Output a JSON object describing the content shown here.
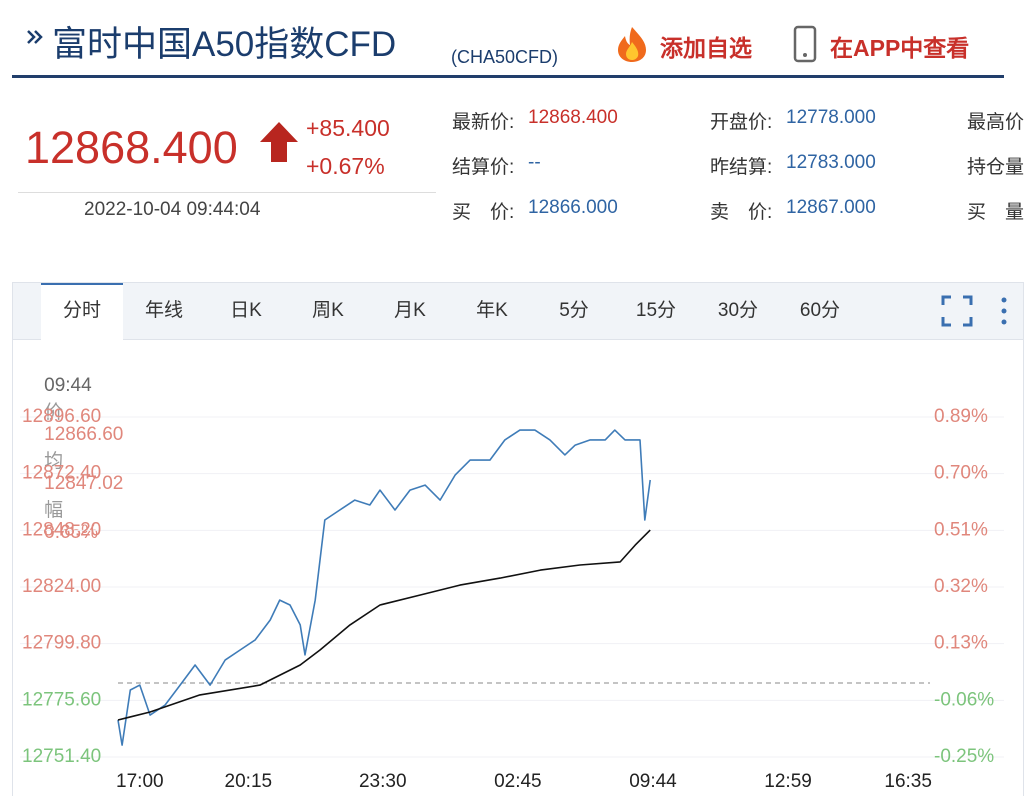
{
  "header": {
    "title": "富时中国A50指数CFD",
    "code": "(CHA50CFD)",
    "actions": [
      "添加自选",
      "在APP中查看"
    ]
  },
  "quote": {
    "price": "12868.400",
    "change": "+85.400",
    "change_pct": "+0.67%",
    "time": "2022-10-04 09:44:04"
  },
  "fields": [
    [
      {
        "label": "最新价:",
        "value": "12868.400"
      },
      {
        "label": "开盘价:",
        "value": "12778.000"
      },
      {
        "label": "最高价"
      }
    ],
    [
      {
        "label": "结算价:",
        "value": "--"
      },
      {
        "label": "昨结算:",
        "value": "12783.000"
      },
      {
        "label": "持仓量"
      }
    ],
    [
      {
        "label": "买　价:",
        "value": "12866.000"
      },
      {
        "label": "卖　价:",
        "value": "12867.000"
      },
      {
        "label": "买　量"
      }
    ]
  ],
  "tabs": [
    "分时",
    "年线",
    "日K",
    "周K",
    "月K",
    "年K",
    "5分",
    "15分",
    "30分",
    "60分"
  ],
  "chart_info": {
    "time": "09:44",
    "price_label": "价",
    "price": "12866.60",
    "avg_label": "均",
    "avg": "12847.02",
    "amp_label": "幅",
    "amp": "0.65%"
  },
  "chart_data": {
    "type": "line",
    "series": [
      {
        "color": "#3f7cb8",
        "x": [
          0,
          6,
          18,
          32,
          47,
          69,
          91,
          113,
          135,
          157,
          179,
          201,
          223,
          237,
          252,
          267,
          274,
          289,
          303,
          325,
          347,
          369,
          384,
          406,
          428,
          450,
          472,
          494,
          516,
          545,
          567,
          589,
          611,
          633,
          655,
          670,
          692,
          714,
          728,
          743,
          765,
          772,
          780
        ],
        "values": [
          12767.2,
          12756.5,
          12780.0,
          12782.1,
          12769.3,
          12773.6,
          12782.1,
          12790.7,
          12782.1,
          12792.8,
          12797.1,
          12801.4,
          12809.9,
          12818.4,
          12816.3,
          12807.8,
          12795.0,
          12818.4,
          12852.6,
          12856.9,
          12861.1,
          12859.0,
          12865.4,
          12856.9,
          12865.4,
          12867.5,
          12861.1,
          12871.8,
          12878.2,
          12878.2,
          12886.8,
          12891.0,
          12891.0,
          12886.8,
          12880.4,
          12884.6,
          12886.8,
          12886.8,
          12891.0,
          12886.8,
          12886.8,
          12852.6,
          12869.7
        ]
      },
      {
        "color": "#111111",
        "x": [
          0,
          47,
          120,
          208,
          267,
          296,
          340,
          384,
          443,
          501,
          560,
          619,
          677,
          736,
          758,
          780
        ],
        "values": [
          12767.2,
          12770.6,
          12777.9,
          12782.1,
          12790.7,
          12797.1,
          12807.8,
          12816.3,
          12820.6,
          12824.8,
          12827.8,
          12831.2,
          12833.4,
          12834.7,
          12841.9,
          12848.3
        ]
      }
    ],
    "baseline": 12783,
    "xlim": [
      0,
      1190
    ],
    "xticks": [
      {
        "value": 32,
        "label": "17:00"
      },
      {
        "value": 191,
        "label": "20:15"
      },
      {
        "value": 388,
        "label": "23:30"
      },
      {
        "value": 586,
        "label": "02:45"
      },
      {
        "value": 784,
        "label": "09:44"
      },
      {
        "value": 982,
        "label": "12:59"
      },
      {
        "value": 1158,
        "label": "16:35"
      }
    ],
    "ylim": [
      12751.4,
      12896.6
    ],
    "yticks": [
      {
        "value": 12896.6,
        "label": "12896.60"
      },
      {
        "value": 12872.4,
        "label": "12872.40"
      },
      {
        "value": 12848.2,
        "label": "12848.20"
      },
      {
        "value": 12824.0,
        "label": "12824.00"
      },
      {
        "value": 12799.8,
        "label": "12799.80"
      },
      {
        "value": 12775.6,
        "label": "12775.60"
      },
      {
        "value": 12751.4,
        "label": "12751.40"
      }
    ],
    "y2lim": [
      -0.25,
      0.89
    ],
    "y2ticks": [
      {
        "value": 0.89,
        "label": "0.89%"
      },
      {
        "value": 0.7,
        "label": "0.70%"
      },
      {
        "value": 0.51,
        "label": "0.51%"
      },
      {
        "value": 0.32,
        "label": "0.32%"
      },
      {
        "value": 0.13,
        "label": "0.13%"
      },
      {
        "value": -0.06,
        "label": "-0.06%"
      },
      {
        "value": -0.25,
        "label": "-0.25%"
      }
    ],
    "grid": true
  }
}
